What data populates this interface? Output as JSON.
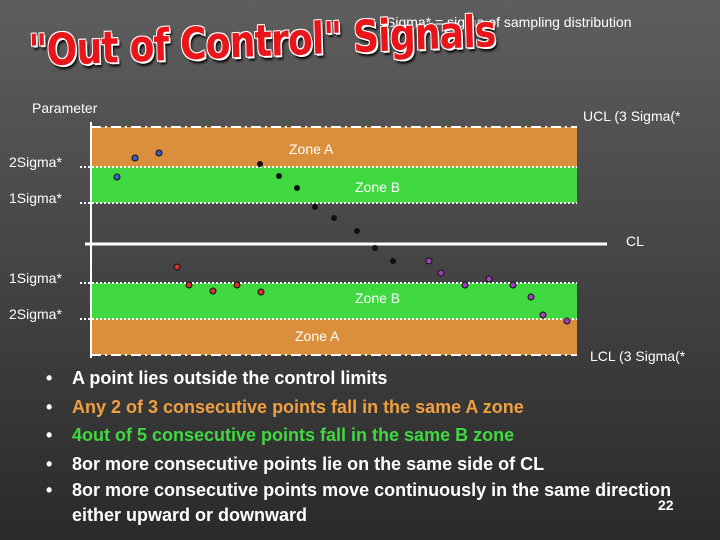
{
  "header": {
    "subtitle": "Sigma* = sigma of sampling distribution",
    "title": "\"Out of Control\" Signals"
  },
  "chart": {
    "parameter_label": "Parameter",
    "ucl_label": "UCL (3 Sigma(*",
    "lcl_label": "LCL (3 Sigma(*",
    "cl_label": "CL",
    "upper_2sigma": "2Sigma*",
    "upper_1sigma": "1Sigma*",
    "lower_1sigma": "1Sigma*",
    "lower_2sigma": "2Sigma*",
    "upper_zone_a": "Zone A",
    "upper_zone_b": "Zone B",
    "lower_zone_b": "Zone B",
    "lower_zone_a": "Zone A",
    "colors": {
      "zone_a": "#d98f3c",
      "zone_b": "#40d840",
      "title": "#e8161b"
    }
  },
  "bullets": [
    {
      "text": "A point lies outside the control limits",
      "color": "white"
    },
    {
      "text": "Any 2 of 3 consecutive points fall in the same A zone",
      "color": "orange"
    },
    {
      "text": " 4out of 5 consecutive points fall in the same B zone",
      "color": "green"
    },
    {
      "text": " 8or more consecutive points lie on the same side of CL",
      "color": "white"
    },
    {
      "text": " 8or more consecutive points move continuously in the same direction either upward or downward",
      "color": "white"
    }
  ],
  "bullet_symbol": "•",
  "page_number": "22"
}
